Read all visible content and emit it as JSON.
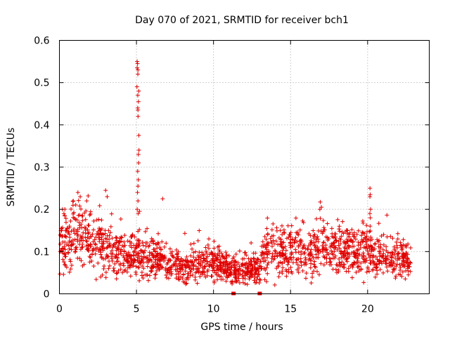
{
  "chart_data": {
    "type": "scatter",
    "title": "Day 070 of 2021, SRMTID for receiver bch1",
    "xlabel": "GPS time / hours",
    "ylabel": "SRMTID / TECUs",
    "xlim": [
      0,
      24
    ],
    "ylim": [
      0,
      0.6
    ],
    "grid": true,
    "marker": "plus",
    "color": "#e00000",
    "x_ticks": [
      {
        "value": 0,
        "label": "0"
      },
      {
        "value": 5,
        "label": "5"
      },
      {
        "value": 10,
        "label": "10"
      },
      {
        "value": 15,
        "label": "15"
      },
      {
        "value": 20,
        "label": "20"
      }
    ],
    "y_ticks": [
      {
        "value": 0,
        "label": "0"
      },
      {
        "value": 0.1,
        "label": "0.1"
      },
      {
        "value": 0.2,
        "label": "0.2"
      },
      {
        "value": 0.3,
        "label": "0.3"
      },
      {
        "value": 0.4,
        "label": "0.4"
      },
      {
        "value": 0.5,
        "label": "0.5"
      },
      {
        "value": 0.6,
        "label": "0.6"
      }
    ],
    "trend": [
      [
        0.0,
        0.11
      ],
      [
        0.5,
        0.12
      ],
      [
        1.0,
        0.14
      ],
      [
        1.5,
        0.15
      ],
      [
        2.0,
        0.13
      ],
      [
        2.5,
        0.12
      ],
      [
        3.0,
        0.11
      ],
      [
        3.5,
        0.1
      ],
      [
        4.0,
        0.095
      ],
      [
        4.5,
        0.09
      ],
      [
        5.0,
        0.1
      ],
      [
        5.5,
        0.085
      ],
      [
        6.0,
        0.08
      ],
      [
        6.5,
        0.085
      ],
      [
        7.0,
        0.065
      ],
      [
        7.5,
        0.065
      ],
      [
        8.0,
        0.06
      ],
      [
        8.5,
        0.065
      ],
      [
        9.0,
        0.07
      ],
      [
        9.5,
        0.08
      ],
      [
        10.0,
        0.075
      ],
      [
        10.5,
        0.07
      ],
      [
        11.0,
        0.06
      ],
      [
        11.5,
        0.05
      ],
      [
        12.0,
        0.055
      ],
      [
        12.5,
        0.06
      ],
      [
        13.0,
        0.06
      ],
      [
        13.3,
        0.1
      ],
      [
        13.5,
        0.11
      ],
      [
        14.0,
        0.11
      ],
      [
        14.5,
        0.1
      ],
      [
        15.0,
        0.11
      ],
      [
        15.5,
        0.1
      ],
      [
        16.0,
        0.095
      ],
      [
        16.5,
        0.1
      ],
      [
        17.0,
        0.12
      ],
      [
        17.5,
        0.11
      ],
      [
        18.0,
        0.11
      ],
      [
        18.5,
        0.1
      ],
      [
        19.0,
        0.1
      ],
      [
        19.5,
        0.095
      ],
      [
        20.0,
        0.11
      ],
      [
        20.5,
        0.1
      ],
      [
        21.0,
        0.09
      ],
      [
        21.5,
        0.085
      ],
      [
        22.0,
        0.08
      ],
      [
        22.8,
        0.075
      ]
    ],
    "spikes": [
      {
        "x": 5.1,
        "values": [
          0.55,
          0.545,
          0.535,
          0.53,
          0.52,
          0.49,
          0.48,
          0.47,
          0.455,
          0.44,
          0.435,
          0.42,
          0.375,
          0.34,
          0.33,
          0.31,
          0.29,
          0.27,
          0.255,
          0.24,
          0.22,
          0.2,
          0.19
        ]
      },
      {
        "x": 20.2,
        "values": [
          0.25,
          0.235,
          0.23,
          0.2,
          0.19,
          0.18
        ]
      }
    ],
    "bumps": [
      {
        "x": 1.2,
        "y": 0.24
      },
      {
        "x": 1.35,
        "y": 0.23
      },
      {
        "x": 0.9,
        "y": 0.22
      },
      {
        "x": 3.0,
        "y": 0.245
      },
      {
        "x": 3.1,
        "y": 0.23
      },
      {
        "x": 6.7,
        "y": 0.225
      },
      {
        "x": 17.0,
        "y": 0.205
      },
      {
        "x": 16.9,
        "y": 0.2
      },
      {
        "x": 0.2,
        "y": 0.2
      }
    ],
    "gap_markers": [
      11.3,
      13.0
    ],
    "point_count": 1800,
    "seed": 70
  }
}
